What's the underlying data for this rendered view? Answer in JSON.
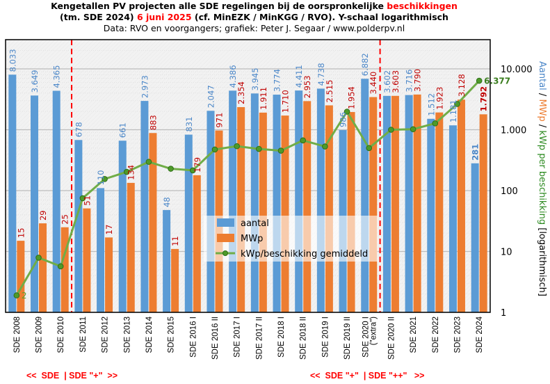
{
  "title": {
    "line1": "Kengetallen  PV projecten alle SDE regelingen  bij de oorspronkelijke ",
    "line1_highlight": "beschikkingen",
    "line2_pre": "(tm. SDE 2024) ",
    "line2_highlight": "6 juni 2025",
    "line2_post": " (cf. MinEZK  / MinKGG  / RVO).  Y-schaal logarithmisch",
    "line3": "Data: RVO  en voorgangers;  grafiek:  Peter J. Segaar / www.polderpv.nl"
  },
  "bottom_notes": {
    "left": "<<  SDE  | SDE \"+\"  >>",
    "right": "<<  SDE \"+\"  | SDE \"++\"   >>"
  },
  "colors": {
    "aantal": "#5b9bd5",
    "mwp": "#ed7d31",
    "line": "#70ad47",
    "marker_fill": "#4e9a2a",
    "label_aantal": "#4a86c8",
    "label_mwp": "#c00000",
    "divider": "#ff0000"
  },
  "chart_data": {
    "type": "bar",
    "title": "Kengetallen PV projecten alle SDE regelingen bij de oorspronkelijke beschikkingen (tm. SDE 2024) 6 juni 2025",
    "xlabel": "",
    "ylabel_parts": [
      {
        "text": "Aantal",
        "color": "#4a86c8"
      },
      {
        "text": " / ",
        "color": "#000000"
      },
      {
        "text": "MWp",
        "color": "#ed7d31"
      },
      {
        "text": " / ",
        "color": "#000000"
      },
      {
        "text": "kWp per beschikking",
        "color": "#2e8b22"
      },
      {
        "text": "  [logarithmisch]",
        "color": "#000000"
      }
    ],
    "yscale": "log",
    "ylim": [
      1,
      20000
    ],
    "yticks": [
      1,
      10,
      100,
      1000,
      10000
    ],
    "ytick_labels": [
      "1",
      "10",
      "100",
      "1.000",
      "10.000"
    ],
    "grid": true,
    "legend_position": "center-bottom",
    "categories": [
      "SDE 2008",
      "SDE 2009",
      "SDE 2010",
      "SDE 2011",
      "SDE 2012",
      "SDE 2013",
      "SDE 2014",
      "SDE 2015",
      "SDE 2016 I",
      "SDE 2016 II",
      "SDE 2017 I",
      "SDE 2017 II",
      "SDE 2018 I",
      "SDE 2018 II",
      "SDE 2019 I",
      "SDE 2019 II",
      "SDE 2020 I\n(\"extra\")",
      "SDE 2020 II",
      "SDE 2021",
      "SDE 2022",
      "SDE 2023",
      "SDE 2024"
    ],
    "series": [
      {
        "name": "aantal",
        "type": "bar",
        "values": [
          8033,
          3649,
          4365,
          678,
          110,
          661,
          2973,
          48,
          831,
          2047,
          4386,
          3945,
          3774,
          4411,
          4738,
          986,
          6882,
          3602,
          3716,
          1512,
          1181,
          281
        ],
        "labels": [
          "8.033",
          "3.649",
          "4.365",
          "678",
          "110",
          "661",
          "2.973",
          "48",
          "831",
          "2.047",
          "4.386",
          "3.945",
          "3.774",
          "4.411",
          "4.738",
          "986",
          "6.882",
          "3.602",
          "3.716",
          "1.512",
          "1.181",
          "281"
        ]
      },
      {
        "name": "MWp",
        "type": "bar",
        "values": [
          15,
          29,
          25,
          51,
          17,
          134,
          883,
          11,
          179,
          971,
          2354,
          1911,
          1710,
          2953,
          2515,
          1954,
          3440,
          3603,
          3790,
          1923,
          3128,
          1792
        ],
        "labels": [
          "15",
          "29",
          "25",
          "51",
          "17",
          "134",
          "883",
          "11",
          "179",
          "971",
          "2.354",
          "1.911",
          "1.710",
          "2.953",
          "2.515",
          "1.954",
          "3.440",
          "3.603",
          "3.790",
          "1.923",
          "3.128",
          "1.792"
        ]
      },
      {
        "name": "kWp/beschikking gemiddeld",
        "type": "line",
        "values": [
          1.9,
          7.9,
          5.7,
          75,
          155,
          203,
          297,
          229,
          215,
          474,
          537,
          484,
          453,
          669,
          531,
          1982,
          500,
          1000,
          1020,
          1272,
          2649,
          6377
        ],
        "labels": [
          "2",
          "",
          "",
          "",
          "",
          "",
          "",
          "",
          "",
          "",
          "",
          "",
          "",
          "",
          "",
          "",
          "",
          "",
          "",
          "",
          "",
          "6.377"
        ]
      }
    ],
    "dividers_after_index": [
      2,
      16
    ],
    "legend": [
      "aantal",
      "MWp",
      "kWp/beschikking gemiddeld"
    ]
  }
}
